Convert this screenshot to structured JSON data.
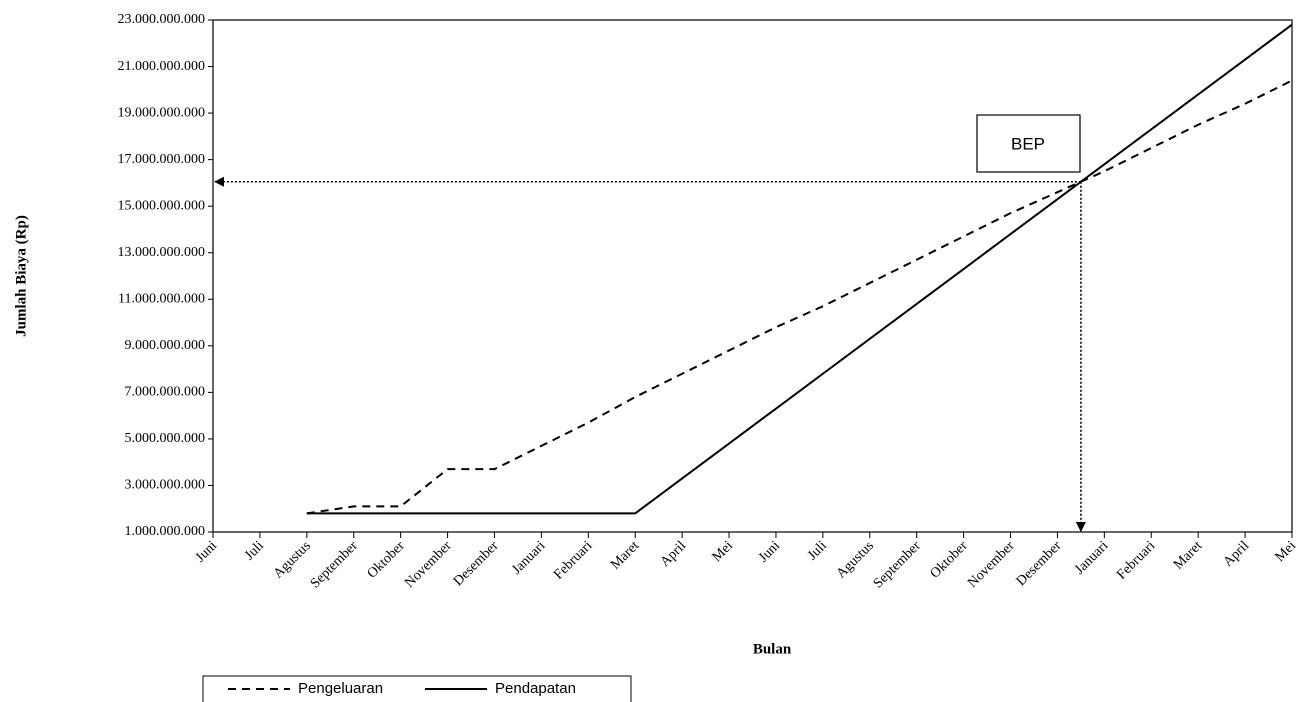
{
  "chart_data": {
    "type": "line",
    "y_label": "Jumlah Biaya (Rp)",
    "x_label": "Bulan",
    "annotation": "BEP",
    "categories": [
      "Juni",
      "Juli",
      "Agustus",
      "September",
      "Oktober",
      "November",
      "Desember",
      "Januari",
      "Februari",
      "Maret",
      "April",
      "Mei",
      "Juni",
      "Juli",
      "Agustus",
      "September",
      "Oktober",
      "November",
      "Desember",
      "Januari",
      "Februari",
      "Maret",
      "April",
      "Mei"
    ],
    "series": [
      {
        "name": "Pengeluaran",
        "color": "#000000",
        "line_style": "dashed",
        "values": [
          null,
          null,
          1800000000,
          2100000000,
          2100000000,
          3700000000,
          3700000000,
          4700000000,
          5700000000,
          6800000000,
          7800000000,
          8800000000,
          9800000000,
          10700000000,
          11700000000,
          12700000000,
          13700000000,
          14700000000,
          15600000000,
          16500000000,
          17500000000,
          18500000000,
          19400000000,
          20400000000
        ]
      },
      {
        "name": "Pendapatan",
        "color": "#000000",
        "line_style": "solid",
        "values": [
          null,
          null,
          1800000000,
          1800000000,
          1800000000,
          1800000000,
          1800000000,
          1800000000,
          1800000000,
          1800000000,
          3300000000,
          4800000000,
          6300000000,
          7800000000,
          9300000000,
          10800000000,
          12300000000,
          13800000000,
          15300000000,
          16800000000,
          18300000000,
          19800000000,
          21300000000,
          22800000000
        ]
      }
    ],
    "ylim": [
      1000000000,
      23000000000
    ],
    "yticks": [
      {
        "value": 1000000000,
        "label": "1.000.000.000"
      },
      {
        "value": 3000000000,
        "label": "3.000.000.000"
      },
      {
        "value": 5000000000,
        "label": "5.000.000.000"
      },
      {
        "value": 7000000000,
        "label": "7.000.000.000"
      },
      {
        "value": 9000000000,
        "label": "9.000.000.000"
      },
      {
        "value": 11000000000,
        "label": "11.000.000.000"
      },
      {
        "value": 13000000000,
        "label": "13.000.000.000"
      },
      {
        "value": 15000000000,
        "label": "15.000.000.000"
      },
      {
        "value": 17000000000,
        "label": "17.000.000.000"
      },
      {
        "value": 19000000000,
        "label": "19.000.000.000"
      },
      {
        "value": 21000000000,
        "label": "21.000.000.000"
      },
      {
        "value": 23000000000,
        "label": "23.000.000.000"
      }
    ],
    "grid": false,
    "legend": "bottom-left"
  }
}
